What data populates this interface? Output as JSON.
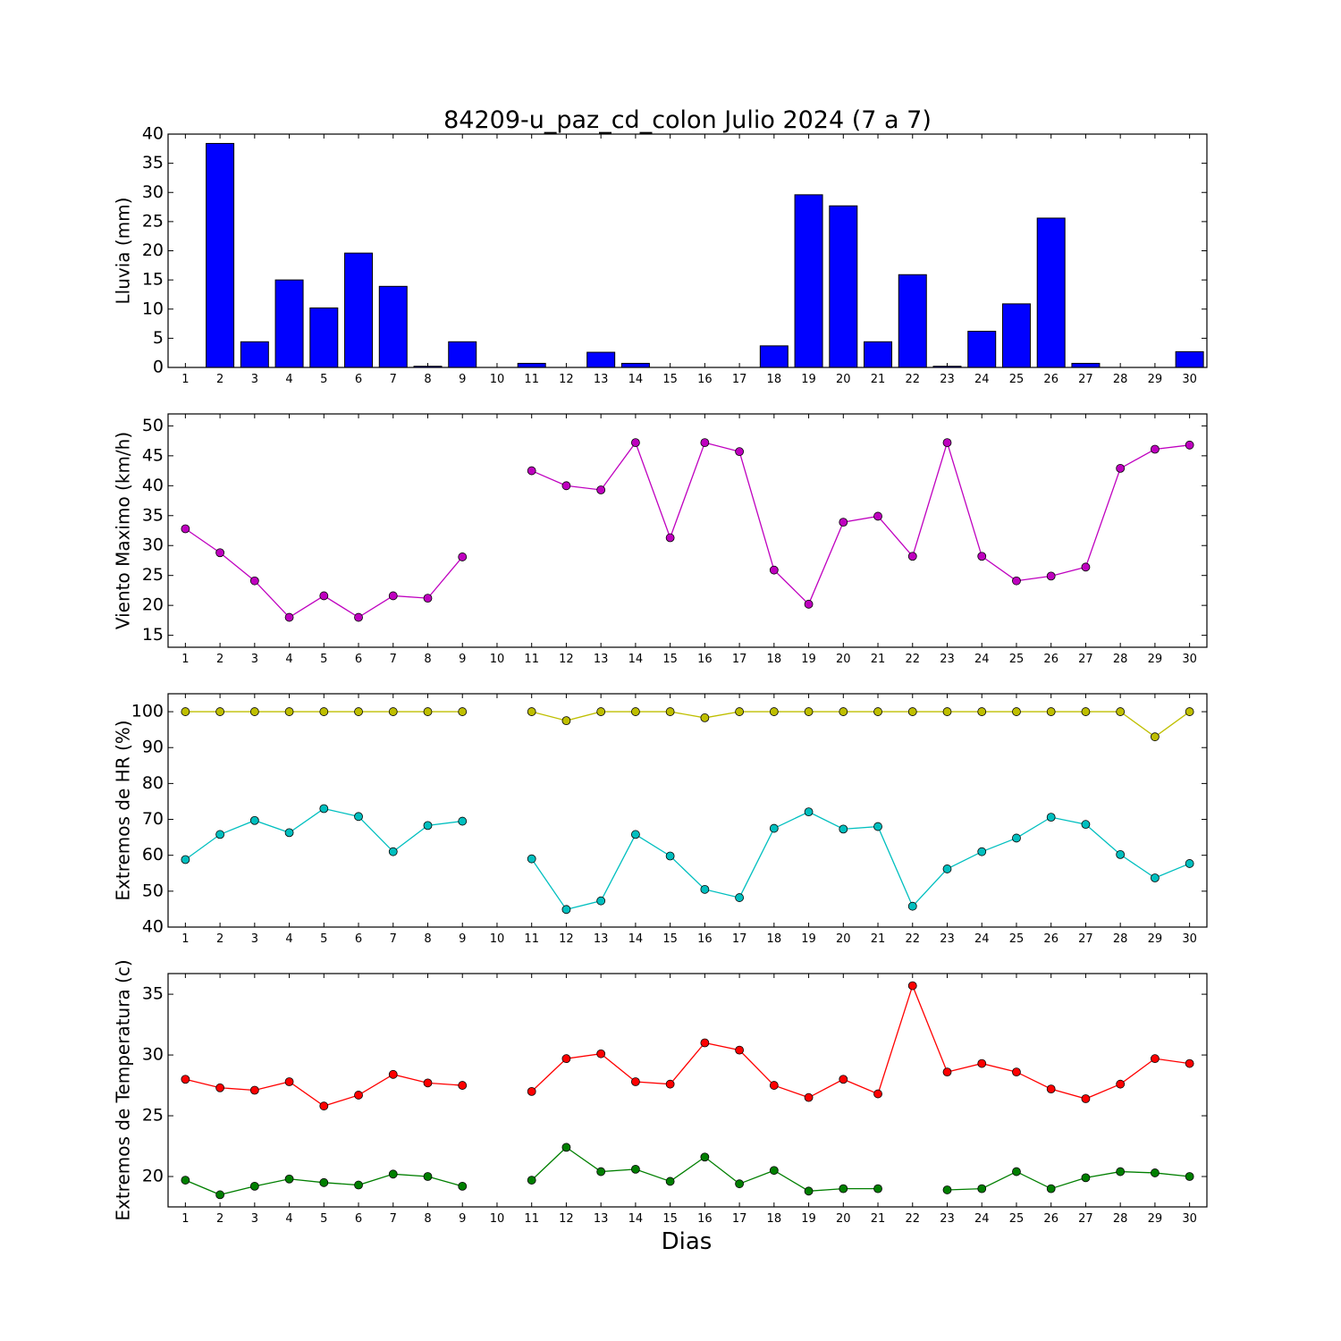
{
  "figure": {
    "title": "84209-u_paz_cd_colon Julio 2024  (7 a 7)",
    "xlabel": "Dias"
  },
  "chart_data": [
    {
      "type": "bar",
      "ylabel": "Lluvia (mm)",
      "ylim": [
        0,
        40
      ],
      "yticks": [
        0,
        5,
        10,
        15,
        20,
        25,
        30,
        35,
        40
      ],
      "x": [
        1,
        2,
        3,
        4,
        5,
        6,
        7,
        8,
        9,
        10,
        11,
        12,
        13,
        14,
        15,
        16,
        17,
        18,
        19,
        20,
        21,
        22,
        23,
        24,
        25,
        26,
        27,
        28,
        29,
        30
      ],
      "series": [
        {
          "color": "#0000ff",
          "values": [
            0,
            38.4,
            4.4,
            15,
            10.2,
            19.6,
            13.9,
            0.2,
            4.4,
            0,
            0.7,
            0,
            2.6,
            0.7,
            0,
            0,
            0,
            3.7,
            29.6,
            27.7,
            4.4,
            15.9,
            0.2,
            6.2,
            10.9,
            25.6,
            0.7,
            0,
            0,
            2.7
          ]
        }
      ]
    },
    {
      "type": "line",
      "ylabel": "Viento Maximo (km/h)",
      "ylim": [
        13,
        52
      ],
      "yticks": [
        15,
        20,
        25,
        30,
        35,
        40,
        45,
        50
      ],
      "x": [
        1,
        2,
        3,
        4,
        5,
        6,
        7,
        8,
        9,
        10,
        11,
        12,
        13,
        14,
        15,
        16,
        17,
        18,
        19,
        20,
        21,
        22,
        23,
        24,
        25,
        26,
        27,
        28,
        29,
        30
      ],
      "series": [
        {
          "color": "#bf00bf",
          "values": [
            32.8,
            28.8,
            24.1,
            18,
            21.6,
            18,
            21.6,
            21.2,
            28.1,
            null,
            42.5,
            40,
            39.3,
            47.2,
            31.3,
            47.2,
            45.7,
            25.9,
            20.2,
            33.9,
            34.9,
            28.2,
            47.2,
            28.2,
            24.1,
            24.9,
            26.4,
            42.9,
            46.1,
            46.8
          ]
        }
      ]
    },
    {
      "type": "line",
      "ylabel": "Extremos de HR (%)",
      "ylim": [
        40,
        105
      ],
      "yticks": [
        40,
        50,
        60,
        70,
        80,
        90,
        100
      ],
      "x": [
        1,
        2,
        3,
        4,
        5,
        6,
        7,
        8,
        9,
        10,
        11,
        12,
        13,
        14,
        15,
        16,
        17,
        18,
        19,
        20,
        21,
        22,
        23,
        24,
        25,
        26,
        27,
        28,
        29,
        30
      ],
      "series": [
        {
          "color": "#bfbf00",
          "values": [
            100,
            100,
            100,
            100,
            100,
            100,
            100,
            100,
            100,
            null,
            100,
            97.5,
            100,
            100,
            100,
            98.3,
            100,
            100,
            100,
            100,
            100,
            100,
            100,
            100,
            100,
            100,
            100,
            100,
            93,
            100
          ]
        },
        {
          "color": "#00bfbf",
          "values": [
            58.8,
            65.8,
            69.7,
            66.3,
            73,
            70.8,
            61,
            68.3,
            69.5,
            null,
            59,
            44.9,
            47.3,
            65.8,
            59.8,
            50.5,
            48.2,
            67.5,
            72.1,
            67.3,
            68,
            45.8,
            56.2,
            61,
            64.8,
            70.6,
            68.6,
            60.2,
            53.7,
            57.7
          ]
        }
      ]
    },
    {
      "type": "line",
      "ylabel": "Extremos de Temperatura (c)",
      "ylim": [
        17.5,
        36.7
      ],
      "yticks": [
        20,
        25,
        30,
        35
      ],
      "x": [
        1,
        2,
        3,
        4,
        5,
        6,
        7,
        8,
        9,
        10,
        11,
        12,
        13,
        14,
        15,
        16,
        17,
        18,
        19,
        20,
        21,
        22,
        23,
        24,
        25,
        26,
        27,
        28,
        29,
        30
      ],
      "series": [
        {
          "color": "#ff0000",
          "values": [
            28,
            27.3,
            27.1,
            27.8,
            25.8,
            26.7,
            28.4,
            27.7,
            27.5,
            null,
            27,
            29.7,
            30.1,
            27.8,
            27.6,
            31,
            30.4,
            27.5,
            26.5,
            28,
            26.8,
            35.7,
            28.6,
            29.3,
            28.6,
            27.2,
            26.4,
            27.6,
            29.7,
            29.3
          ]
        },
        {
          "color": "#007f00",
          "values": [
            19.7,
            18.5,
            19.2,
            19.8,
            19.5,
            19.3,
            20.2,
            20,
            19.2,
            null,
            19.7,
            22.4,
            20.4,
            20.6,
            19.6,
            21.6,
            19.4,
            20.5,
            18.8,
            19,
            19,
            null,
            18.9,
            19,
            20.4,
            19,
            19.9,
            20.4,
            20.3,
            20
          ]
        }
      ]
    }
  ]
}
